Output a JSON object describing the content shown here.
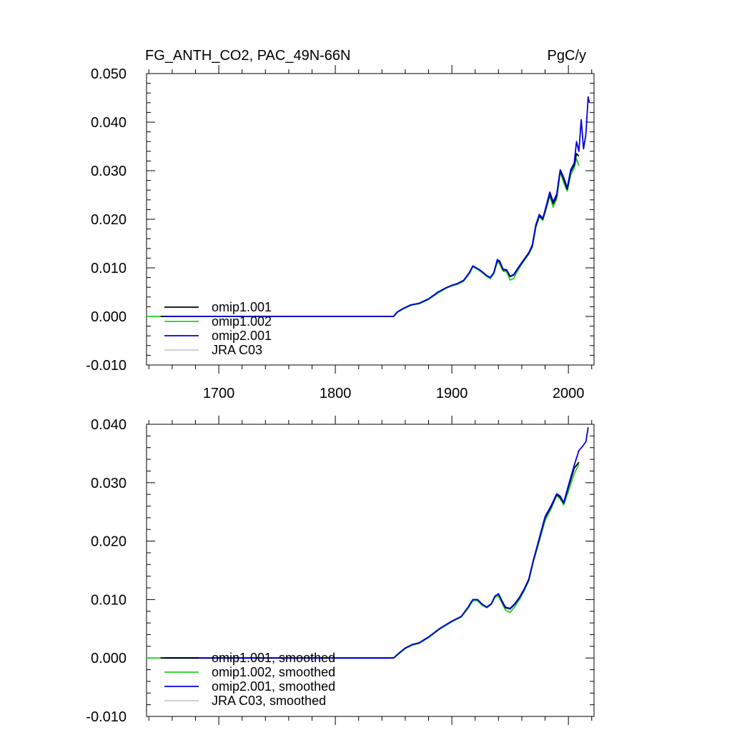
{
  "title_left": "FG_ANTH_CO2, PAC_49N-66N",
  "title_right": "PgC/y",
  "colors": {
    "omip1.001": "#000000",
    "omip1.002": "#1fd21f",
    "omip2.001": "#0000e0",
    "JRA C03": "#c8c8c8"
  },
  "chart_data": [
    {
      "type": "line",
      "title": "FG_ANTH_CO2, PAC_49N-66N",
      "units_label": "PgC/y",
      "xlim": [
        1638,
        2022
      ],
      "ylim": [
        -0.01,
        0.05
      ],
      "x_ticks": [
        1700,
        1800,
        1900,
        2000
      ],
      "x_tick_labels": [
        "1700",
        "1800",
        "1900",
        "2000"
      ],
      "y_ticks": [
        -0.01,
        0.0,
        0.01,
        0.02,
        0.03,
        0.04,
        0.05
      ],
      "y_tick_labels": [
        "-0.010",
        "0.000",
        "0.010",
        "0.020",
        "0.030",
        "0.040",
        "0.050"
      ],
      "legend_position": "bottom-left",
      "legend": [
        "omip1.001",
        "omip1.002",
        "omip2.001",
        "JRA C03"
      ],
      "series": [
        {
          "name": "omip1.002",
          "x": [
            1638,
            1850,
            1853,
            1858,
            1865,
            1872,
            1880,
            1888,
            1895,
            1900,
            1905,
            1910,
            1915,
            1918,
            1921,
            1925,
            1930,
            1933,
            1936,
            1939,
            1941,
            1944,
            1947,
            1950,
            1953,
            1956,
            1960,
            1963,
            1966,
            1969,
            1972,
            1975,
            1978,
            1981,
            1984,
            1987,
            1990,
            1993,
            1996,
            1999,
            2002,
            2005,
            2007,
            2009
          ],
          "y": [
            0.0,
            0.0,
            0.0008,
            0.0015,
            0.0023,
            0.0026,
            0.0035,
            0.0048,
            0.0058,
            0.0063,
            0.0066,
            0.0072,
            0.0088,
            0.0102,
            0.0098,
            0.0092,
            0.0082,
            0.0078,
            0.0088,
            0.0112,
            0.0108,
            0.0093,
            0.0092,
            0.0075,
            0.0078,
            0.0092,
            0.0108,
            0.0118,
            0.0128,
            0.0142,
            0.0182,
            0.0205,
            0.0198,
            0.0222,
            0.0248,
            0.0225,
            0.0242,
            0.0298,
            0.0275,
            0.0258,
            0.0292,
            0.0305,
            0.0325,
            0.031
          ]
        },
        {
          "name": "omip1.001",
          "x": [
            1650,
            1850,
            1853,
            1858,
            1865,
            1872,
            1880,
            1888,
            1895,
            1900,
            1905,
            1910,
            1915,
            1918,
            1921,
            1925,
            1930,
            1933,
            1936,
            1939,
            1941,
            1944,
            1947,
            1950,
            1953,
            1956,
            1960,
            1963,
            1966,
            1969,
            1972,
            1975,
            1978,
            1981,
            1984,
            1987,
            1990,
            1993,
            1996,
            1999,
            2002,
            2005,
            2007,
            2009
          ],
          "y": [
            0.0,
            0.0,
            0.0009,
            0.0016,
            0.0024,
            0.0027,
            0.0036,
            0.005,
            0.0059,
            0.0064,
            0.0068,
            0.0074,
            0.009,
            0.0104,
            0.01,
            0.0094,
            0.0084,
            0.008,
            0.009,
            0.0115,
            0.0112,
            0.0096,
            0.0095,
            0.0082,
            0.0085,
            0.0096,
            0.011,
            0.012,
            0.013,
            0.0145,
            0.0186,
            0.0208,
            0.02,
            0.0225,
            0.0252,
            0.0232,
            0.0248,
            0.03,
            0.0282,
            0.0262,
            0.0298,
            0.0312,
            0.0335,
            0.033
          ]
        },
        {
          "name": "omip2.001",
          "x": [
            1653,
            1850,
            1853,
            1858,
            1865,
            1872,
            1880,
            1888,
            1895,
            1900,
            1905,
            1910,
            1915,
            1918,
            1921,
            1925,
            1930,
            1933,
            1936,
            1939,
            1941,
            1944,
            1947,
            1950,
            1953,
            1956,
            1960,
            1963,
            1966,
            1969,
            1972,
            1975,
            1978,
            1981,
            1984,
            1987,
            1990,
            1993,
            1996,
            1999,
            2002,
            2005,
            2007,
            2009,
            2011,
            2013,
            2015,
            2017,
            2018
          ],
          "y": [
            0.0,
            0.0,
            0.0009,
            0.0016,
            0.0024,
            0.0027,
            0.0036,
            0.005,
            0.0059,
            0.0064,
            0.0068,
            0.0074,
            0.009,
            0.0104,
            0.01,
            0.0094,
            0.0084,
            0.008,
            0.009,
            0.0117,
            0.0114,
            0.0097,
            0.0096,
            0.0083,
            0.0086,
            0.0097,
            0.0111,
            0.0121,
            0.0131,
            0.0147,
            0.0188,
            0.021,
            0.0202,
            0.0228,
            0.0256,
            0.0236,
            0.0252,
            0.0302,
            0.0286,
            0.0265,
            0.0302,
            0.0316,
            0.036,
            0.034,
            0.0405,
            0.0345,
            0.0375,
            0.0452,
            0.044
          ]
        }
      ]
    },
    {
      "type": "line",
      "xlim": [
        1638,
        2022
      ],
      "ylim": [
        -0.01,
        0.04
      ],
      "x_ticks": [
        1700,
        1800,
        1900,
        2000
      ],
      "y_ticks": [
        -0.01,
        0.0,
        0.01,
        0.02,
        0.03,
        0.04
      ],
      "y_tick_labels": [
        "-0.010",
        "0.000",
        "0.010",
        "0.020",
        "0.030",
        "0.040"
      ],
      "legend_position": "bottom-left",
      "legend": [
        "omip1.001, smoothed",
        "omip1.002, smoothed",
        "omip2.001, smoothed",
        "JRA C03, smoothed"
      ],
      "series": [
        {
          "name": "omip1.002, smoothed",
          "x": [
            1638,
            1850,
            1855,
            1860,
            1866,
            1872,
            1880,
            1890,
            1900,
            1908,
            1914,
            1918,
            1922,
            1926,
            1930,
            1934,
            1937,
            1940,
            1943,
            1946,
            1950,
            1954,
            1958,
            1962,
            1966,
            1970,
            1975,
            1980,
            1985,
            1990,
            1993,
            1996,
            2000,
            2005,
            2009
          ],
          "y": [
            0.0,
            0.0,
            0.0008,
            0.0016,
            0.0022,
            0.0025,
            0.0035,
            0.005,
            0.0062,
            0.007,
            0.0085,
            0.0098,
            0.0098,
            0.009,
            0.0086,
            0.0092,
            0.0104,
            0.0106,
            0.0094,
            0.0082,
            0.0078,
            0.0088,
            0.01,
            0.0115,
            0.0132,
            0.0165,
            0.02,
            0.0235,
            0.0255,
            0.0278,
            0.0272,
            0.0262,
            0.0285,
            0.0315,
            0.0332
          ]
        },
        {
          "name": "omip1.001, smoothed",
          "x": [
            1650,
            1850,
            1855,
            1860,
            1866,
            1872,
            1880,
            1890,
            1900,
            1908,
            1914,
            1918,
            1922,
            1926,
            1930,
            1934,
            1937,
            1940,
            1943,
            1946,
            1950,
            1954,
            1958,
            1962,
            1966,
            1970,
            1975,
            1980,
            1985,
            1990,
            1993,
            1996,
            2000,
            2005,
            2009
          ],
          "y": [
            0.0,
            0.0,
            0.0009,
            0.0017,
            0.0023,
            0.0026,
            0.0036,
            0.0051,
            0.0063,
            0.0071,
            0.0087,
            0.01,
            0.01,
            0.0092,
            0.0087,
            0.0093,
            0.0106,
            0.0109,
            0.0097,
            0.0086,
            0.0084,
            0.0092,
            0.0103,
            0.0117,
            0.0134,
            0.0167,
            0.0203,
            0.024,
            0.0258,
            0.028,
            0.0275,
            0.0265,
            0.0292,
            0.0325,
            0.0335
          ]
        },
        {
          "name": "omip2.001, smoothed",
          "x": [
            1653,
            1850,
            1855,
            1860,
            1866,
            1872,
            1880,
            1890,
            1900,
            1908,
            1914,
            1918,
            1922,
            1926,
            1930,
            1934,
            1937,
            1940,
            1943,
            1946,
            1950,
            1954,
            1958,
            1962,
            1966,
            1970,
            1975,
            1980,
            1985,
            1990,
            1993,
            1996,
            2000,
            2005,
            2009,
            2012,
            2015,
            2017
          ],
          "y": [
            0.0,
            0.0,
            0.0009,
            0.0017,
            0.0023,
            0.0026,
            0.0036,
            0.0051,
            0.0063,
            0.0071,
            0.0087,
            0.01,
            0.01,
            0.0092,
            0.0087,
            0.0093,
            0.0106,
            0.011,
            0.0098,
            0.0087,
            0.0085,
            0.0093,
            0.0104,
            0.0118,
            0.0135,
            0.0168,
            0.0205,
            0.0242,
            0.026,
            0.0281,
            0.0277,
            0.0266,
            0.0295,
            0.033,
            0.0355,
            0.0362,
            0.037,
            0.0395
          ]
        }
      ]
    }
  ]
}
